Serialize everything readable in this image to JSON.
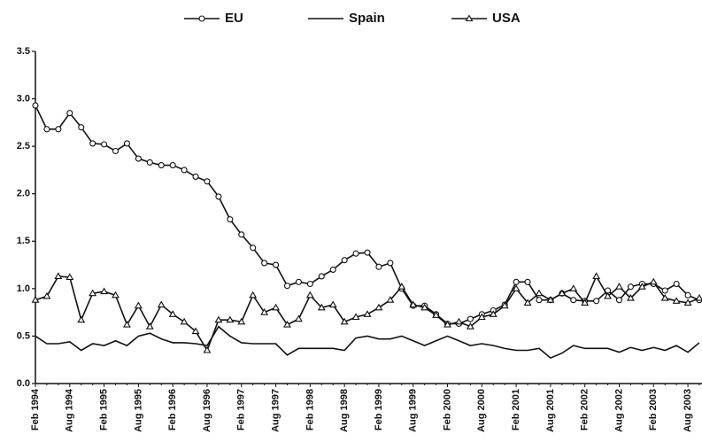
{
  "chart_data": {
    "type": "line",
    "categories": [
      "Feb 1994",
      null,
      null,
      "Aug 1994",
      null,
      null,
      "Feb 1995",
      null,
      null,
      "Aug 1995",
      null,
      null,
      "Feb 1996",
      null,
      null,
      "Aug 1996",
      null,
      null,
      "Feb 1997",
      null,
      null,
      "Aug 1997",
      null,
      null,
      "Feb 1998",
      null,
      null,
      "Aug 1998",
      null,
      null,
      "Feb 1999",
      null,
      null,
      "Aug 1999",
      null,
      null,
      "Feb 2000",
      null,
      null,
      "Aug 2000",
      null,
      null,
      "Feb 2001",
      null,
      null,
      "Aug 2001",
      null,
      null,
      "Feb 2002",
      null,
      null,
      "Aug 2002",
      null,
      null,
      "Feb 2003",
      null,
      null,
      "Aug 2003",
      null
    ],
    "series": [
      {
        "name": "EU",
        "color": "#111111",
        "marker": "circle",
        "values": [
          2.93,
          2.68,
          2.68,
          2.85,
          2.7,
          2.53,
          2.52,
          2.45,
          2.53,
          2.37,
          2.33,
          2.3,
          2.3,
          2.25,
          2.18,
          2.13,
          1.97,
          1.73,
          1.57,
          1.43,
          1.27,
          1.25,
          1.03,
          1.07,
          1.05,
          1.13,
          1.2,
          1.3,
          1.37,
          1.38,
          1.23,
          1.27,
          1.0,
          0.82,
          0.82,
          0.73,
          0.63,
          0.63,
          0.68,
          0.73,
          0.77,
          0.83,
          1.07,
          1.07,
          0.88,
          0.88,
          0.95,
          0.88,
          0.87,
          0.87,
          0.98,
          0.88,
          1.02,
          1.05,
          1.05,
          0.98,
          1.05,
          0.93,
          0.88
        ]
      },
      {
        "name": "Spain",
        "color": "#111111",
        "marker": "none",
        "values": [
          0.5,
          0.42,
          0.42,
          0.44,
          0.35,
          0.42,
          0.4,
          0.45,
          0.4,
          0.5,
          0.53,
          0.47,
          0.43,
          0.43,
          0.42,
          0.4,
          0.6,
          0.5,
          0.43,
          0.42,
          0.42,
          0.42,
          0.3,
          0.37,
          0.37,
          0.37,
          0.37,
          0.35,
          0.48,
          0.5,
          0.47,
          0.47,
          0.5,
          0.45,
          0.4,
          0.45,
          0.5,
          0.45,
          0.4,
          0.42,
          0.4,
          0.37,
          0.35,
          0.35,
          0.37,
          0.27,
          0.32,
          0.4,
          0.37,
          0.37,
          0.37,
          0.33,
          0.38,
          0.35,
          0.38,
          0.35,
          0.4,
          0.33,
          0.43
        ]
      },
      {
        "name": "USA",
        "color": "#111111",
        "marker": "triangle",
        "values": [
          0.88,
          0.92,
          1.13,
          1.12,
          0.67,
          0.95,
          0.97,
          0.93,
          0.62,
          0.82,
          0.6,
          0.83,
          0.73,
          0.65,
          0.55,
          0.35,
          0.67,
          0.67,
          0.65,
          0.93,
          0.75,
          0.8,
          0.62,
          0.68,
          0.93,
          0.8,
          0.83,
          0.65,
          0.7,
          0.73,
          0.8,
          0.88,
          1.02,
          0.83,
          0.8,
          0.72,
          0.62,
          0.65,
          0.6,
          0.7,
          0.73,
          0.82,
          1.0,
          0.85,
          0.95,
          0.88,
          0.95,
          1.0,
          0.85,
          1.13,
          0.92,
          1.02,
          0.9,
          1.02,
          1.07,
          0.9,
          0.87,
          0.85,
          0.9
        ]
      }
    ],
    "ylim": [
      0,
      3.5
    ],
    "yticks": [
      {
        "value": 0,
        "label": "0.0"
      },
      0.5,
      {
        "value": 1,
        "label": "1.0"
      },
      1.5,
      {
        "value": 2,
        "label": "2.0"
      },
      2.5,
      {
        "value": 3,
        "label": "3.0"
      },
      3.5
    ],
    "grid": false,
    "legend": "top"
  }
}
